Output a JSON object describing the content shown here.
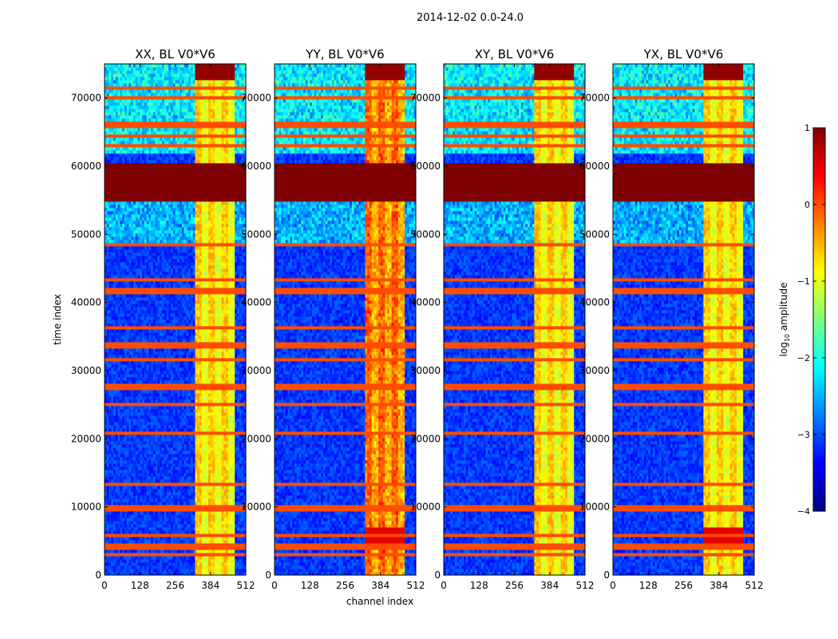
{
  "figure": {
    "suptitle": "2014-12-02 0.0-24.0"
  },
  "chart_data": {
    "type": "heatmap",
    "xlabel": "channel index",
    "ylabel": "time index",
    "x_ticks": [
      0,
      128,
      256,
      384,
      512
    ],
    "y_ticks": [
      0,
      10000,
      20000,
      30000,
      40000,
      50000,
      60000,
      70000
    ],
    "xlim": [
      0,
      512
    ],
    "ylim": [
      0,
      75000
    ],
    "panels": [
      {
        "title": "XX, BL V0*V6",
        "variant": 0
      },
      {
        "title": "YY, BL V0*V6",
        "variant": 1
      },
      {
        "title": "XY, BL V0*V6",
        "variant": 2
      },
      {
        "title": "YX, BL V0*V6",
        "variant": 3
      }
    ],
    "colorbar": {
      "label_prefix": "log",
      "label_sub": "10",
      "label_suffix": " amplitude",
      "range": [
        -4,
        1
      ],
      "ticks": [
        1,
        0,
        -1,
        -2,
        -3,
        -4
      ],
      "tick_labels": [
        "1",
        "0",
        "−1",
        "−2",
        "−3",
        "−4"
      ],
      "colormap": [
        "#00007f",
        "#0000ff",
        "#007fff",
        "#00ffff",
        "#7fff7f",
        "#ffff00",
        "#ff7f00",
        "#ff0000",
        "#7f0000"
      ]
    },
    "features": {
      "saturated_time_block": [
        55000,
        60500
      ],
      "bright_channel_band": [
        330,
        475
      ],
      "flagged_rows": [
        3000,
        4200,
        6000,
        9800,
        10200,
        13500,
        20800,
        25200,
        27300,
        27800,
        31800,
        33500,
        34000,
        36500,
        41500,
        42000,
        43500,
        48500,
        63000,
        64500,
        65800,
        66200,
        70000,
        71500
      ]
    }
  }
}
